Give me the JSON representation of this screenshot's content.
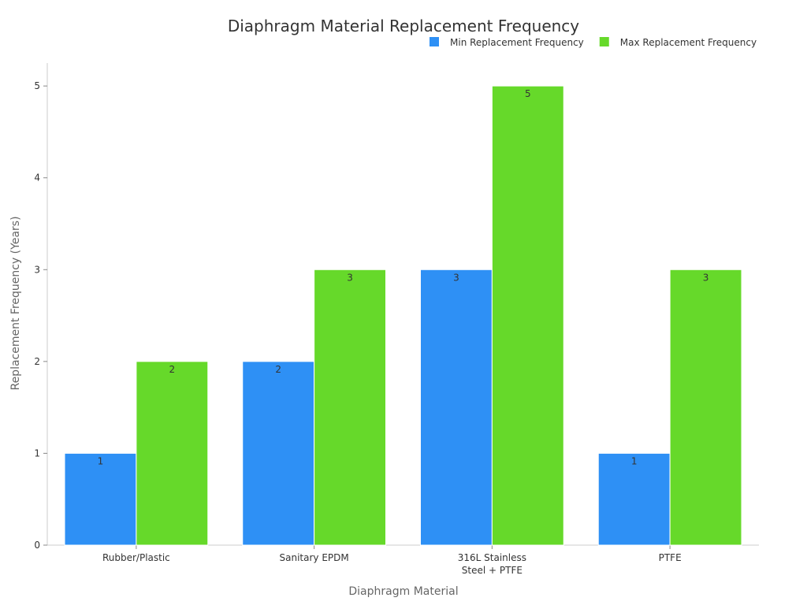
{
  "chart_data": {
    "type": "bar",
    "title": "Diaphragm Material Replacement Frequency",
    "xlabel": "Diaphragm Material",
    "ylabel": "Replacement Frequency (Years)",
    "categories": [
      [
        "Rubber/Plastic"
      ],
      [
        "Sanitary EPDM"
      ],
      [
        "316L Stainless",
        "Steel + PTFE"
      ],
      [
        "PTFE"
      ]
    ],
    "series": [
      {
        "name": "Min Replacement Frequency",
        "color": "#2e90f5",
        "values": [
          1,
          2,
          3,
          1
        ]
      },
      {
        "name": "Max Replacement Frequency",
        "color": "#66d92a",
        "values": [
          2,
          3,
          5,
          3
        ]
      }
    ],
    "ylim": [
      0,
      5.25
    ],
    "yticks": [
      0,
      1,
      2,
      3,
      4,
      5
    ],
    "grid": false,
    "legend_position": "top-right",
    "data_labels": true
  }
}
